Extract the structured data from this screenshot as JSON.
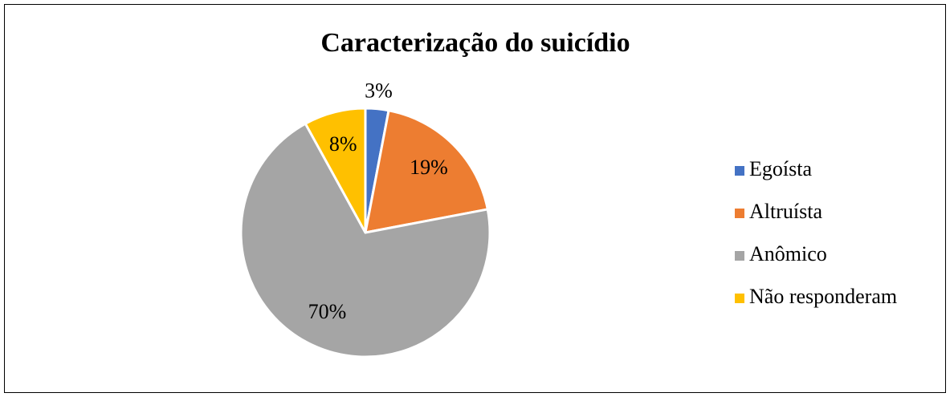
{
  "chart_data": {
    "type": "pie",
    "title": "Caracterização do suicídio",
    "categories": [
      "Egoísta",
      "Altruísta",
      "Anômico",
      "Não responderam"
    ],
    "values": [
      3,
      19,
      70,
      8
    ],
    "value_labels": [
      "3%",
      "19%",
      "70%",
      "8%"
    ],
    "colors": [
      "#4472c4",
      "#ed7d31",
      "#a5a5a5",
      "#ffc000"
    ]
  }
}
